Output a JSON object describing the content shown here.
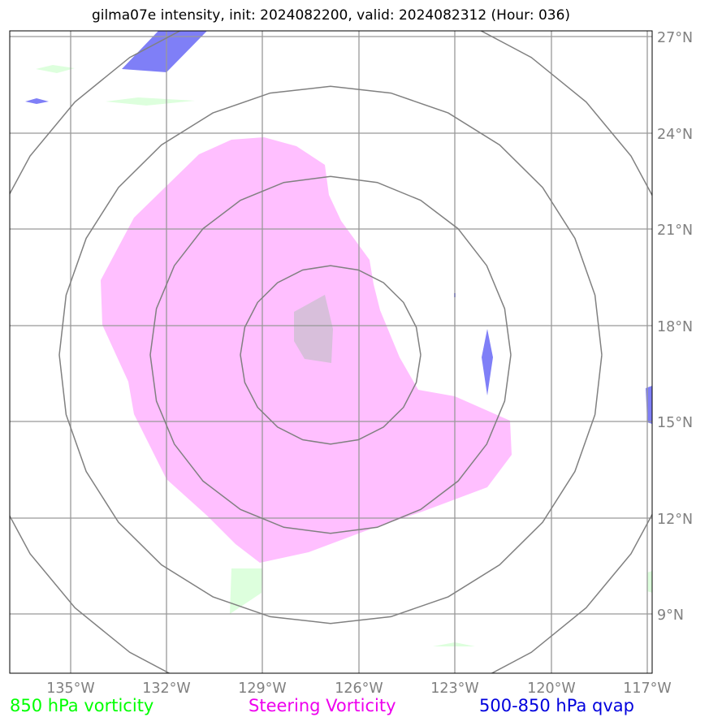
{
  "title": "gilma07e intensity, init: 2024082200, valid: 2024082312 (Hour: 036)",
  "map": {
    "lat_labels": [
      "27°N",
      "24°N",
      "21°N",
      "18°N",
      "15°N",
      "12°N",
      "9°N"
    ],
    "lon_labels": [
      "135°W",
      "132°W",
      "129°W",
      "126°W",
      "123°W",
      "120°W",
      "117°W"
    ],
    "colors": {
      "vorticity_850": "#ddffdd",
      "steering_vorticity": "#ffbfff",
      "qvap_500_850": "#7f7ff7",
      "overlap": "#d8bfdb",
      "range_rings": "#808080",
      "grid": "#999999"
    }
  },
  "legend": [
    {
      "label": "850 hPa vorticity",
      "color": "#00ff00"
    },
    {
      "label": "Steering Vorticity",
      "color": "#ee00ee"
    },
    {
      "label": "500-850 hPa qvap",
      "color": "#0000dd"
    }
  ]
}
